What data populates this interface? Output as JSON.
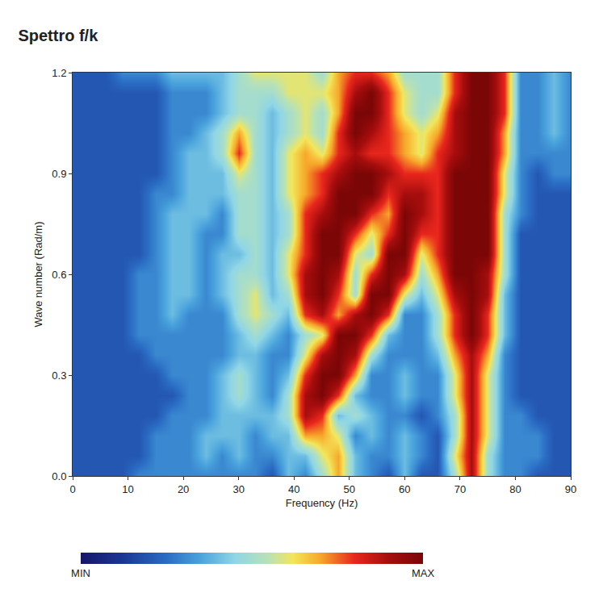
{
  "chart_data": {
    "type": "heatmap",
    "title": "Spettro f/k",
    "x_label": "Frequency (Hz)",
    "y_label": "Wave number (Rad/m)",
    "x": [
      0,
      3,
      6,
      9,
      12,
      15,
      18,
      21,
      24,
      27,
      30,
      33,
      36,
      39,
      42,
      45,
      48,
      51,
      54,
      57,
      60,
      63,
      66,
      69,
      72,
      75,
      78,
      81,
      84,
      87,
      90
    ],
    "y": [
      0,
      0.06,
      0.12,
      0.18,
      0.24,
      0.3,
      0.36,
      0.42,
      0.48,
      0.54,
      0.6,
      0.66,
      0.72,
      0.78,
      0.84,
      0.9,
      0.96,
      1.02,
      1.08,
      1.14,
      1.2
    ],
    "cells": [
      [
        2,
        2,
        2,
        2,
        3,
        3,
        3,
        3,
        3,
        3,
        3,
        3,
        2,
        4,
        3,
        5,
        7,
        4,
        3,
        2,
        4,
        2,
        2,
        5,
        9,
        5,
        3,
        3,
        2,
        2,
        2
      ],
      [
        2,
        2,
        2,
        2,
        2,
        3,
        3,
        3,
        4,
        3,
        4,
        3,
        3,
        4,
        4,
        6,
        7,
        4,
        3,
        3,
        4,
        3,
        2,
        6,
        9,
        5,
        3,
        3,
        3,
        2,
        2
      ],
      [
        2,
        2,
        2,
        2,
        2,
        3,
        3,
        3,
        4,
        4,
        4,
        3,
        4,
        4,
        7,
        7,
        6,
        3,
        4,
        3,
        4,
        3,
        2,
        5,
        9,
        6,
        3,
        3,
        3,
        2,
        2
      ],
      [
        2,
        2,
        2,
        2,
        2,
        2,
        3,
        3,
        3,
        4,
        4,
        4,
        4,
        5,
        9,
        8,
        4,
        5,
        4,
        3,
        3,
        2,
        3,
        5,
        9,
        6,
        3,
        3,
        2,
        2,
        2
      ],
      [
        2,
        2,
        2,
        2,
        2,
        2,
        2,
        3,
        3,
        4,
        5,
        4,
        3,
        5,
        9,
        10,
        8,
        4,
        3,
        3,
        4,
        3,
        3,
        6,
        9,
        6,
        3,
        2,
        2,
        2,
        2
      ],
      [
        2,
        2,
        2,
        2,
        2,
        2,
        3,
        3,
        3,
        4,
        5,
        4,
        3,
        4,
        8,
        10,
        10,
        7,
        3,
        3,
        4,
        3,
        3,
        6,
        9,
        6,
        3,
        2,
        2,
        2,
        2
      ],
      [
        2,
        2,
        2,
        2,
        2,
        3,
        3,
        3,
        3,
        3,
        4,
        4,
        3,
        3,
        6,
        9,
        10,
        9,
        5,
        3,
        3,
        3,
        4,
        7,
        9,
        7,
        3,
        2,
        2,
        2,
        2
      ],
      [
        2,
        2,
        2,
        2,
        3,
        3,
        3,
        3,
        3,
        3,
        4,
        5,
        4,
        3,
        5,
        6,
        10,
        10,
        8,
        4,
        3,
        3,
        5,
        8,
        10,
        8,
        4,
        2,
        2,
        2,
        2
      ],
      [
        2,
        2,
        2,
        2,
        3,
        3,
        4,
        3,
        3,
        3,
        5,
        6,
        5,
        4,
        8,
        9,
        7,
        9,
        10,
        8,
        3,
        3,
        5,
        8,
        10,
        8,
        4,
        2,
        2,
        2,
        2
      ],
      [
        2,
        2,
        2,
        2,
        3,
        3,
        4,
        4,
        3,
        4,
        5,
        6,
        4,
        5,
        9,
        10,
        8,
        5,
        10,
        10,
        6,
        4,
        6,
        9,
        10,
        9,
        4,
        2,
        2,
        2,
        2
      ],
      [
        2,
        2,
        2,
        2,
        3,
        3,
        4,
        4,
        3,
        4,
        5,
        5,
        4,
        6,
        9,
        10,
        9,
        5,
        8,
        10,
        9,
        5,
        7,
        10,
        10,
        9,
        5,
        2,
        2,
        2,
        2
      ],
      [
        2,
        2,
        2,
        2,
        2,
        3,
        4,
        4,
        3,
        4,
        4,
        5,
        4,
        6,
        8,
        10,
        10,
        6,
        5,
        10,
        10,
        6,
        8,
        10,
        10,
        10,
        5,
        2,
        2,
        2,
        2
      ],
      [
        2,
        2,
        2,
        2,
        2,
        3,
        4,
        4,
        3,
        3,
        5,
        5,
        4,
        5,
        8,
        10,
        10,
        8,
        6,
        8,
        10,
        8,
        8,
        10,
        10,
        10,
        5,
        2,
        2,
        2,
        2
      ],
      [
        2,
        2,
        2,
        2,
        2,
        3,
        4,
        4,
        4,
        3,
        5,
        5,
        4,
        5,
        8,
        9,
        10,
        10,
        8,
        7,
        10,
        9,
        8,
        10,
        10,
        10,
        5,
        3,
        2,
        2,
        2
      ],
      [
        2,
        2,
        2,
        2,
        2,
        3,
        3,
        4,
        4,
        4,
        5,
        5,
        4,
        6,
        7,
        8,
        10,
        10,
        10,
        8,
        9,
        9,
        8,
        10,
        10,
        10,
        6,
        3,
        2,
        2,
        2
      ],
      [
        2,
        2,
        2,
        2,
        2,
        2,
        3,
        4,
        4,
        4,
        6,
        5,
        4,
        6,
        7,
        8,
        9,
        10,
        10,
        9,
        8,
        8,
        8,
        10,
        10,
        10,
        6,
        3,
        2,
        3,
        3
      ],
      [
        2,
        2,
        2,
        2,
        2,
        2,
        3,
        4,
        4,
        5,
        8,
        5,
        4,
        6,
        7,
        6,
        8,
        9,
        8,
        8,
        7,
        6,
        8,
        9,
        10,
        10,
        7,
        3,
        3,
        3,
        3
      ],
      [
        2,
        2,
        2,
        2,
        2,
        2,
        3,
        3,
        4,
        5,
        7,
        5,
        4,
        5,
        6,
        5,
        8,
        10,
        9,
        8,
        7,
        6,
        7,
        9,
        10,
        10,
        7,
        3,
        3,
        4,
        3
      ],
      [
        2,
        2,
        2,
        2,
        2,
        2,
        3,
        3,
        3,
        4,
        5,
        5,
        4,
        5,
        6,
        5,
        7,
        10,
        10,
        8,
        6,
        5,
        6,
        9,
        10,
        10,
        8,
        3,
        3,
        4,
        3
      ],
      [
        2,
        2,
        2,
        2,
        2,
        2,
        3,
        3,
        3,
        4,
        5,
        5,
        5,
        6,
        6,
        6,
        7,
        9,
        10,
        8,
        6,
        5,
        5,
        8,
        10,
        10,
        8,
        3,
        3,
        4,
        3
      ],
      [
        2,
        2,
        2,
        3,
        3,
        3,
        4,
        4,
        4,
        4,
        5,
        6,
        6,
        6,
        6,
        5,
        7,
        8,
        8,
        7,
        5,
        5,
        5,
        8,
        10,
        10,
        8,
        3,
        3,
        4,
        3
      ]
    ],
    "colorbar_range": [
      0,
      10
    ],
    "colorbar_ticks": [
      {
        "value": 0,
        "label": "MIN"
      },
      {
        "value": 10,
        "label": "MAX"
      }
    ],
    "xlim": [
      0,
      90
    ],
    "xticks": [
      0,
      10,
      20,
      30,
      40,
      50,
      60,
      70,
      80,
      90
    ],
    "ylim": [
      0,
      1.2
    ],
    "yticks": [
      {
        "value": 0,
        "label": "0.0"
      },
      0.3,
      0.6,
      0.9,
      1.2
    ],
    "grid": false
  }
}
